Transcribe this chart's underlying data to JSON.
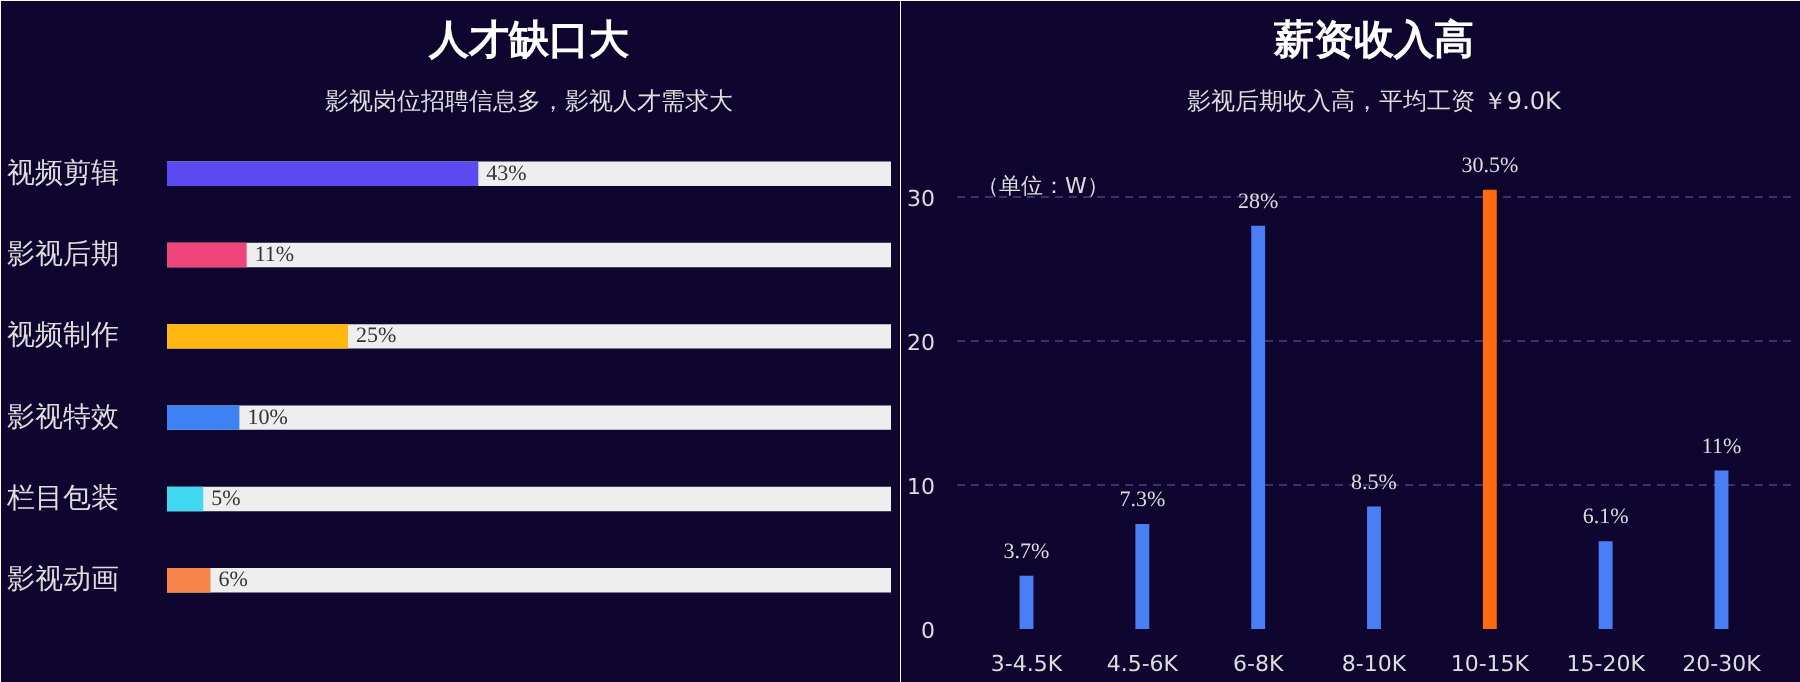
{
  "chart_data": [
    {
      "type": "bar",
      "title": "人才缺口大",
      "subtitle": "影视岗位招聘信息多，影视人才需求大",
      "orientation": "horizontal",
      "xlim": [
        0,
        100
      ],
      "categories": [
        "视频剪辑",
        "影视后期",
        "视频制作",
        "影视特效",
        "栏目包装",
        "影视动画"
      ],
      "series": [
        {
          "colors": [
            "#5b4bf0",
            "#f0457a",
            "#fdb710",
            "#3d82f4",
            "#3fd8f0",
            "#f5854a"
          ],
          "values": [
            43,
            11,
            25,
            10,
            5,
            6
          ],
          "value_labels": [
            "43%",
            "11%",
            "25%",
            "10%",
            "5%",
            "6%"
          ]
        }
      ],
      "grid": false,
      "tick_labels": "y"
    },
    {
      "type": "bar",
      "title": "薪资收入高",
      "subtitle": "影视后期收入高，平均工资 ￥9.0K",
      "annotations": [
        "（单位：W）"
      ],
      "categories": [
        "3-4.5K",
        "4.5-6K",
        "6-8K",
        "8-10K",
        "10-15K",
        "15-20K",
        "20-30K"
      ],
      "values": [
        3.7,
        7.3,
        28,
        8.5,
        30.5,
        6.1,
        11
      ],
      "colors": [
        "#4a7ef5",
        "#4a7ef5",
        "#4a7ef5",
        "#4a7ef5",
        "#ff6a10",
        "#4a7ef5",
        "#4a7ef5"
      ],
      "value_labels": [
        "3.7%",
        "7.3%",
        "28%",
        "8.5%",
        "30.5%",
        "6.1%",
        "11%"
      ],
      "ylim": [
        0,
        35
      ],
      "yticks": [
        0,
        10,
        20,
        30
      ],
      "grid": "y"
    }
  ]
}
